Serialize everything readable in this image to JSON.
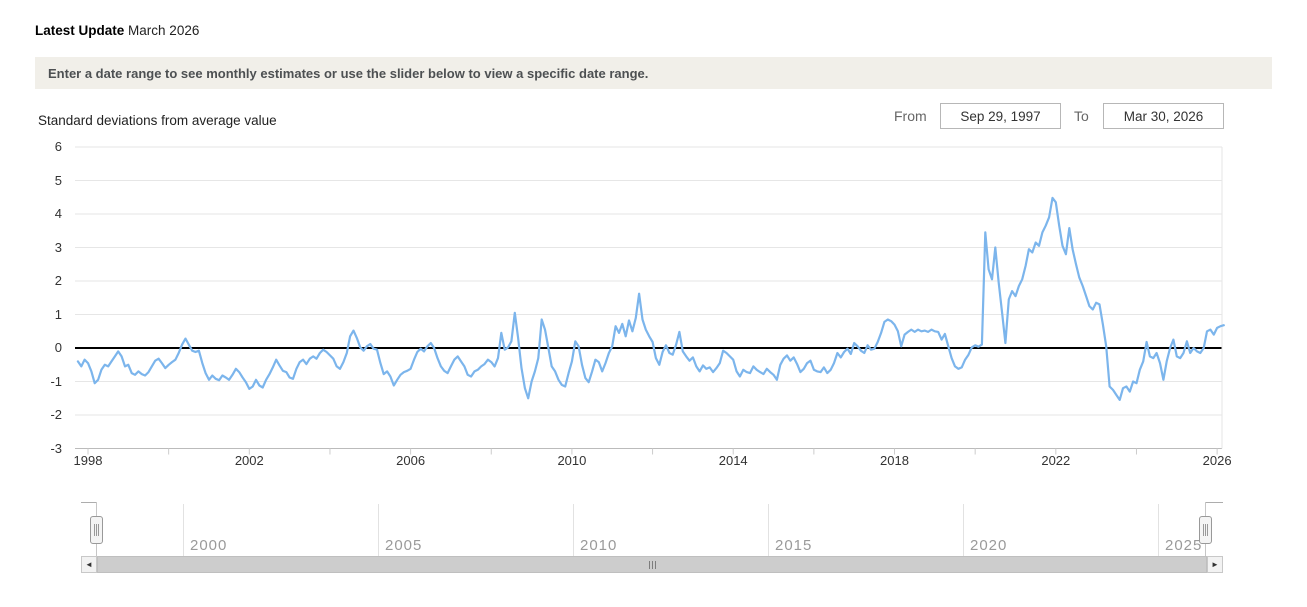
{
  "header": {
    "latest_update_label": "Latest Update",
    "latest_update_value": "March 2026"
  },
  "banner": {
    "text": "Enter a date range to see monthly estimates or use the slider below to view a specific date range."
  },
  "controls": {
    "from_label": "From",
    "from_value": "Sep 29, 1997",
    "to_label": "To",
    "to_value": "Mar 30, 2026"
  },
  "icons": {
    "scroll_left": "◄",
    "scroll_right": "►"
  },
  "colors": {
    "series": "#7cb5ec",
    "grid": "#e6e6e6",
    "zero_line": "#000000",
    "axis_line": "#bbbbbb",
    "tick": "#cccccc",
    "banner_bg": "#f1efe9",
    "nav_label": "#9a9a9a"
  },
  "chart_data": {
    "type": "line",
    "title": "Standard deviations from average value",
    "ylabel": "Standard deviations from average value",
    "xlabel": "",
    "grid": "horizontal",
    "legend": "none",
    "ylim": [
      -3,
      6
    ],
    "xlim": [
      1997.6,
      2026.35
    ],
    "y_ticks": [
      6,
      5,
      4,
      3,
      2,
      1,
      0,
      -1,
      -2,
      -3
    ],
    "x_ticks": [
      1998,
      2000,
      2002,
      2004,
      2006,
      2008,
      2010,
      2012,
      2014,
      2016,
      2018,
      2020,
      2022,
      2024,
      2026
    ],
    "x_tick_label_years": [
      1998,
      2002,
      2006,
      2010,
      2014,
      2018,
      2022,
      2026
    ],
    "zero_line": true,
    "series": [
      {
        "name": "Standard deviations from average value",
        "color": "#7cb5ec",
        "x_start": 1997.75,
        "x_step_years": 0.0833333,
        "frequency": "monthly",
        "values": [
          -0.4,
          -0.55,
          -0.35,
          -0.45,
          -0.7,
          -1.05,
          -0.95,
          -0.65,
          -0.5,
          -0.55,
          -0.4,
          -0.25,
          -0.1,
          -0.25,
          -0.55,
          -0.5,
          -0.75,
          -0.8,
          -0.7,
          -0.78,
          -0.82,
          -0.72,
          -0.55,
          -0.38,
          -0.32,
          -0.45,
          -0.6,
          -0.5,
          -0.42,
          -0.35,
          -0.15,
          0.1,
          0.28,
          0.1,
          -0.08,
          -0.12,
          -0.08,
          -0.45,
          -0.75,
          -0.95,
          -0.82,
          -0.92,
          -0.96,
          -0.82,
          -0.88,
          -0.95,
          -0.8,
          -0.62,
          -0.72,
          -0.88,
          -1.02,
          -1.22,
          -1.15,
          -0.95,
          -1.12,
          -1.18,
          -0.95,
          -0.78,
          -0.58,
          -0.35,
          -0.52,
          -0.68,
          -0.72,
          -0.88,
          -0.92,
          -0.62,
          -0.42,
          -0.35,
          -0.48,
          -0.32,
          -0.25,
          -0.32,
          -0.15,
          -0.05,
          -0.12,
          -0.22,
          -0.32,
          -0.55,
          -0.62,
          -0.42,
          -0.15,
          0.35,
          0.52,
          0.3,
          0.02,
          -0.08,
          0.05,
          0.12,
          -0.02,
          -0.05,
          -0.45,
          -0.78,
          -0.7,
          -0.85,
          -1.12,
          -0.95,
          -0.8,
          -0.72,
          -0.68,
          -0.62,
          -0.35,
          -0.12,
          -0.02,
          -0.1,
          0.05,
          0.15,
          0.0,
          -0.3,
          -0.55,
          -0.68,
          -0.75,
          -0.55,
          -0.35,
          -0.25,
          -0.4,
          -0.55,
          -0.8,
          -0.85,
          -0.7,
          -0.65,
          -0.55,
          -0.48,
          -0.35,
          -0.42,
          -0.55,
          -0.3,
          0.45,
          -0.05,
          0.02,
          0.2,
          1.05,
          0.3,
          -0.6,
          -1.2,
          -1.5,
          -1.0,
          -0.7,
          -0.3,
          0.85,
          0.55,
          0.0,
          -0.55,
          -0.7,
          -0.95,
          -1.1,
          -1.15,
          -0.75,
          -0.4,
          0.2,
          0.05,
          -0.5,
          -0.9,
          -1.02,
          -0.7,
          -0.35,
          -0.42,
          -0.7,
          -0.45,
          -0.15,
          0.05,
          0.65,
          0.45,
          0.72,
          0.35,
          0.82,
          0.5,
          0.9,
          1.62,
          0.85,
          0.55,
          0.35,
          0.18,
          -0.3,
          -0.5,
          -0.12,
          0.08,
          -0.15,
          -0.2,
          0.1,
          0.48,
          -0.1,
          -0.25,
          -0.38,
          -0.28,
          -0.55,
          -0.7,
          -0.52,
          -0.62,
          -0.58,
          -0.72,
          -0.6,
          -0.45,
          -0.08,
          -0.15,
          -0.25,
          -0.35,
          -0.7,
          -0.85,
          -0.65,
          -0.72,
          -0.75,
          -0.55,
          -0.65,
          -0.72,
          -0.78,
          -0.62,
          -0.72,
          -0.8,
          -0.95,
          -0.5,
          -0.32,
          -0.22,
          -0.38,
          -0.28,
          -0.48,
          -0.72,
          -0.62,
          -0.45,
          -0.38,
          -0.65,
          -0.7,
          -0.72,
          -0.58,
          -0.75,
          -0.65,
          -0.45,
          -0.15,
          -0.28,
          -0.12,
          -0.02,
          -0.18,
          0.15,
          0.05,
          -0.08,
          -0.15,
          0.08,
          -0.05,
          -0.02,
          0.18,
          0.45,
          0.78,
          0.85,
          0.8,
          0.7,
          0.5,
          0.05,
          0.4,
          0.48,
          0.55,
          0.48,
          0.55,
          0.5,
          0.52,
          0.48,
          0.55,
          0.5,
          0.48,
          0.25,
          0.42,
          0.05,
          -0.3,
          -0.55,
          -0.62,
          -0.58,
          -0.35,
          -0.2,
          0.02,
          0.08,
          0.04,
          0.1,
          3.45,
          2.35,
          2.05,
          3.0,
          1.95,
          1.05,
          0.15,
          1.45,
          1.7,
          1.55,
          1.85,
          2.05,
          2.45,
          2.95,
          2.85,
          3.15,
          3.05,
          3.45,
          3.65,
          3.9,
          4.48,
          4.35,
          3.65,
          3.05,
          2.8,
          3.58,
          2.95,
          2.5,
          2.1,
          1.85,
          1.55,
          1.25,
          1.15,
          1.35,
          1.3,
          0.7,
          0.05,
          -1.15,
          -1.25,
          -1.4,
          -1.55,
          -1.2,
          -1.15,
          -1.3,
          -1.0,
          -1.05,
          -0.65,
          -0.4,
          0.18,
          -0.25,
          -0.3,
          -0.15,
          -0.45,
          -0.95,
          -0.4,
          0.0,
          0.25,
          -0.25,
          -0.3,
          -0.15,
          0.2,
          -0.15,
          0.0,
          -0.1,
          -0.15,
          0.0,
          0.5,
          0.55,
          0.4,
          0.6,
          0.65,
          0.68
        ]
      }
    ]
  },
  "navigator": {
    "years": [
      2000,
      2005,
      2010,
      2015,
      2020,
      2025
    ]
  }
}
